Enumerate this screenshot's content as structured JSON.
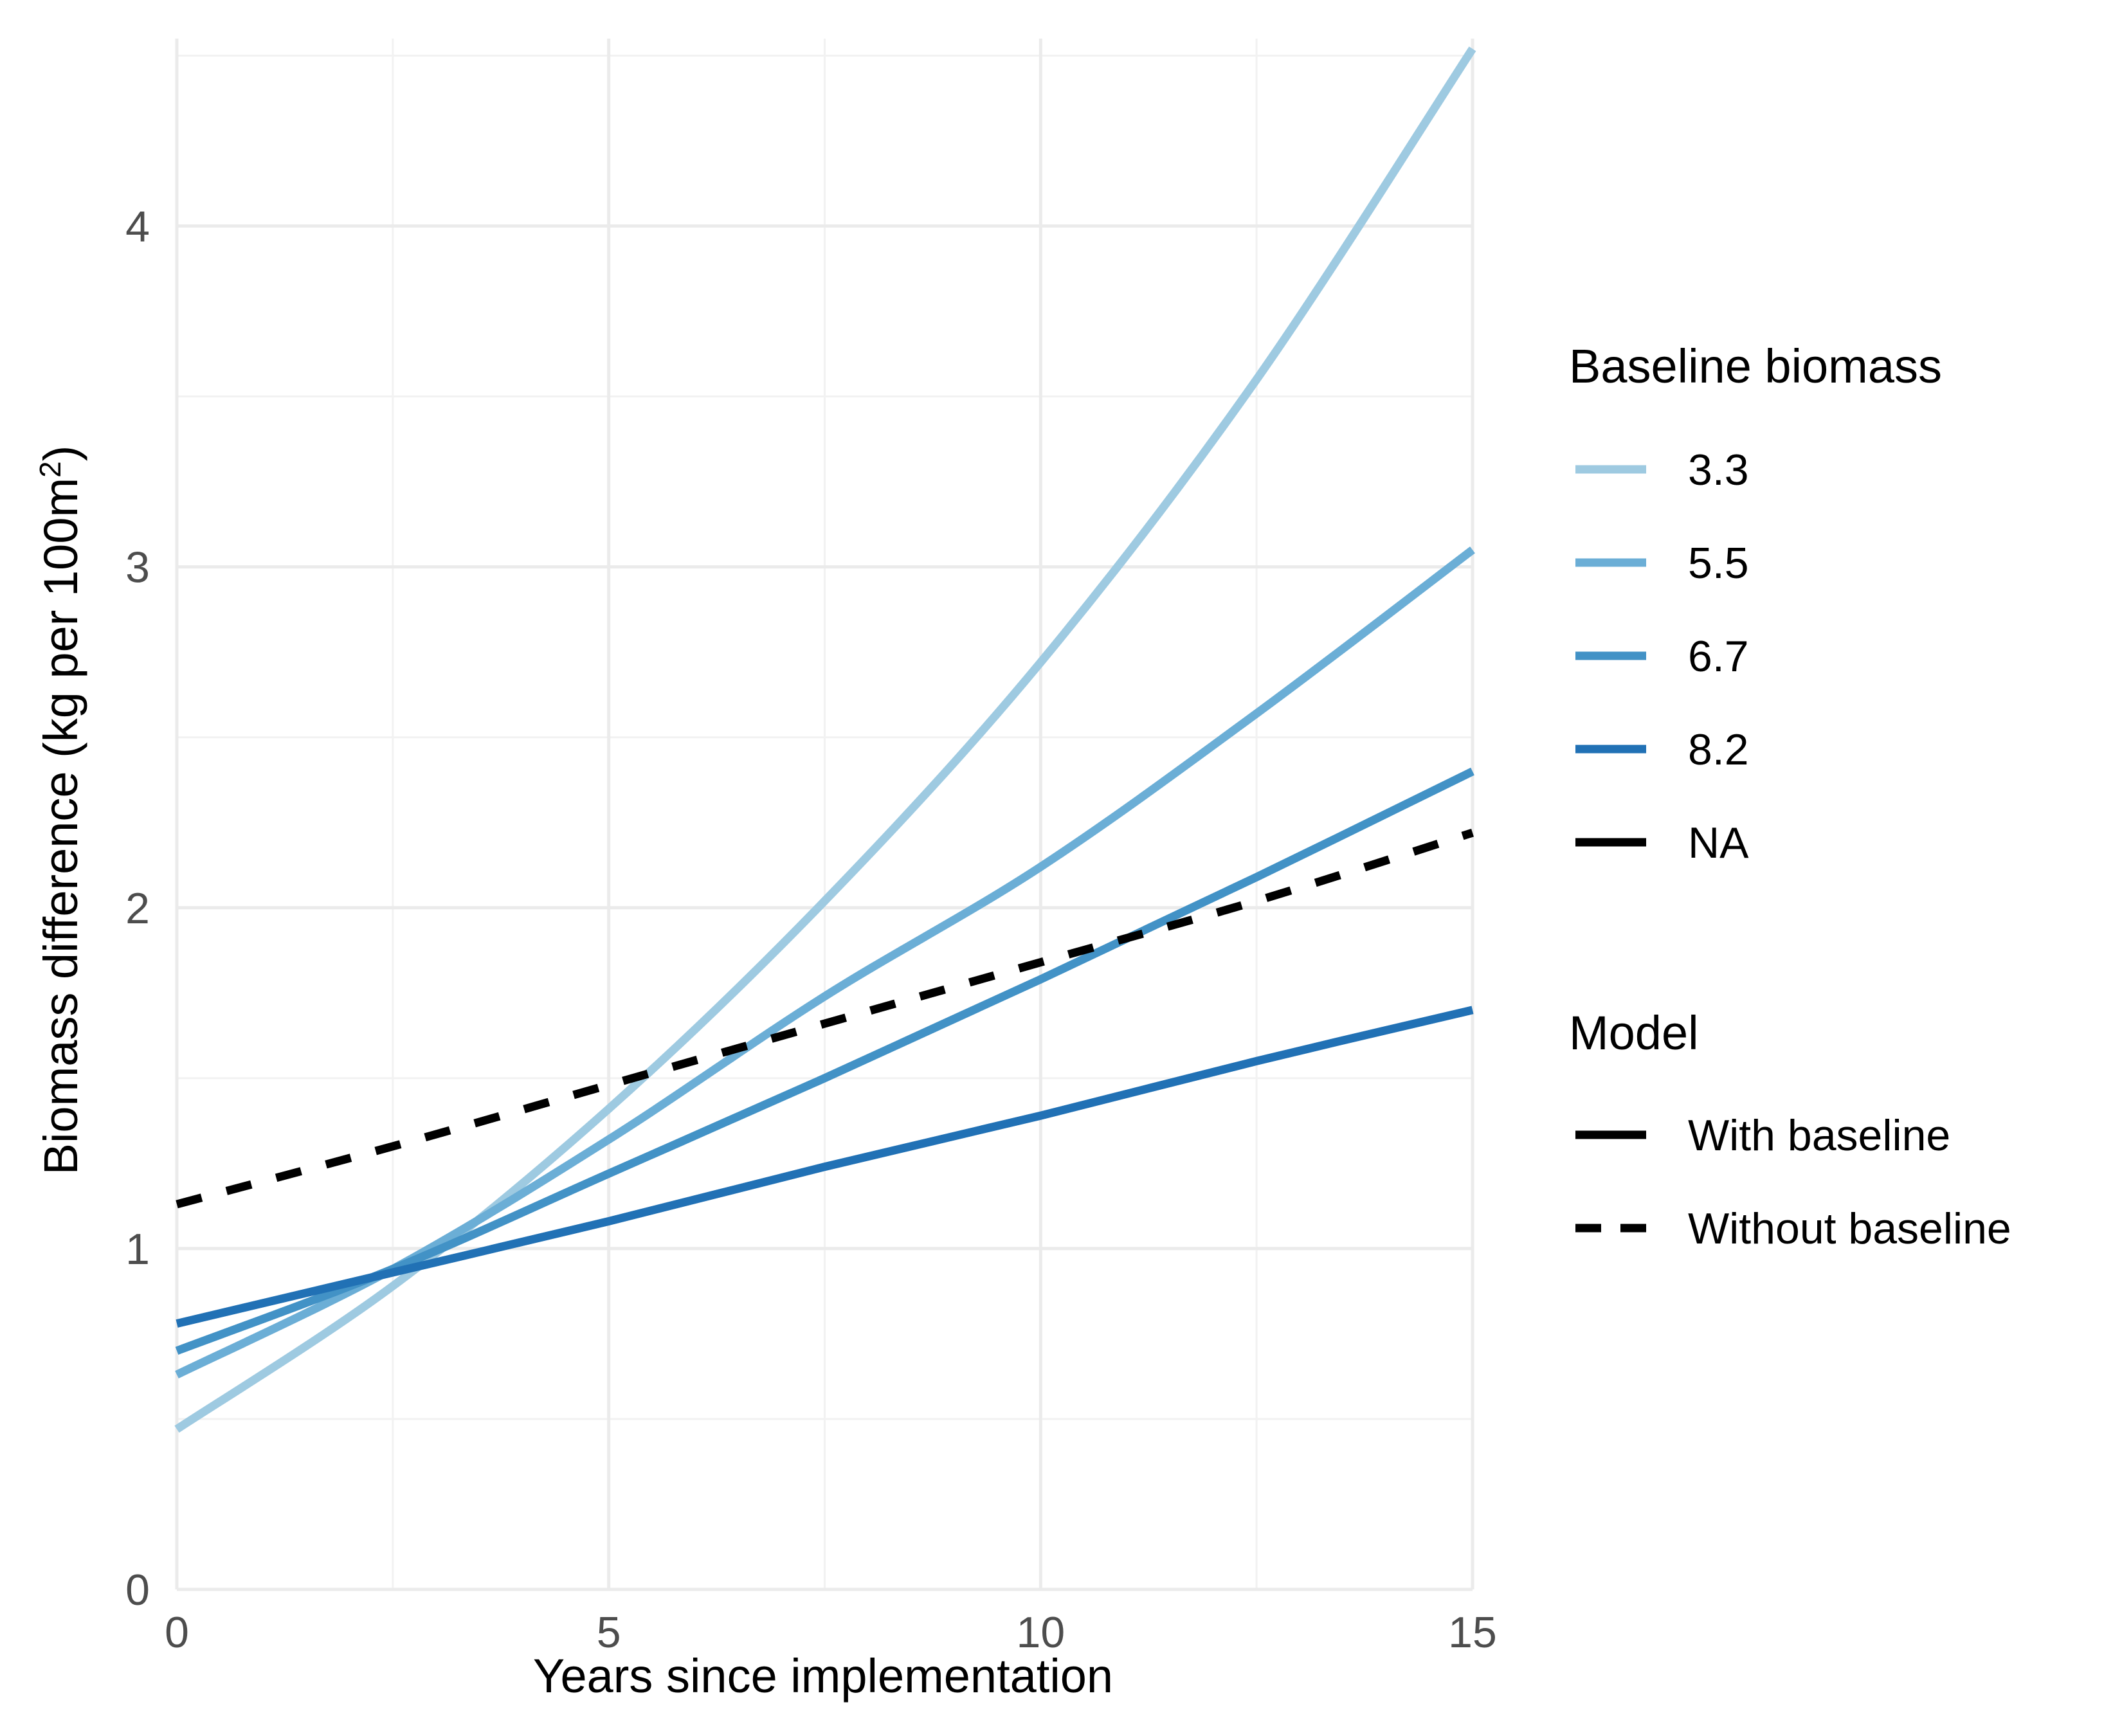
{
  "chart_data": {
    "type": "line",
    "xlabel": "Years since implementation",
    "ylabel": "Biomass difference (kg per 100m",
    "ylabel_sup": "2",
    "ylabel_close": ")",
    "xlim": [
      0,
      15
    ],
    "ylim": [
      0,
      4.55
    ],
    "x_ticks": [
      0,
      5,
      10,
      15
    ],
    "y_ticks": [
      0,
      1,
      2,
      3,
      4
    ],
    "grid": true,
    "legend_position": "right",
    "colors": {
      "3.3": "#9ecae1",
      "5.5": "#6baed6",
      "6.7": "#4292c6",
      "8.2": "#2171b5",
      "NA": "#000000"
    },
    "legends": [
      {
        "title": "Baseline biomass",
        "entries": [
          {
            "label": "3.3",
            "color": "#9ecae1",
            "dash": "solid"
          },
          {
            "label": "5.5",
            "color": "#6baed6",
            "dash": "solid"
          },
          {
            "label": "6.7",
            "color": "#4292c6",
            "dash": "solid"
          },
          {
            "label": "8.2",
            "color": "#2171b5",
            "dash": "solid"
          },
          {
            "label": "NA",
            "color": "#000000",
            "dash": "solid"
          }
        ]
      },
      {
        "title": "Model",
        "entries": [
          {
            "label": "With baseline",
            "color": "#000000",
            "dash": "solid"
          },
          {
            "label": "Without baseline",
            "color": "#000000",
            "dash": "dashed"
          }
        ]
      }
    ],
    "series": [
      {
        "baseline": "3.3",
        "model": "With baseline",
        "x": [
          0,
          2.5,
          5,
          7.5,
          10,
          12.5,
          15
        ],
        "y": [
          0.47,
          0.89,
          1.41,
          2.02,
          2.72,
          3.55,
          4.52
        ]
      },
      {
        "baseline": "5.5",
        "model": "With baseline",
        "x": [
          0,
          2.5,
          5,
          7.5,
          10,
          12.5,
          15
        ],
        "y": [
          0.63,
          0.94,
          1.32,
          1.74,
          2.12,
          2.57,
          3.05
        ]
      },
      {
        "baseline": "6.7",
        "model": "With baseline",
        "x": [
          0,
          2.5,
          5,
          7.5,
          10,
          12.5,
          15
        ],
        "y": [
          0.7,
          0.94,
          1.22,
          1.5,
          1.79,
          2.09,
          2.4
        ]
      },
      {
        "baseline": "8.2",
        "model": "With baseline",
        "x": [
          0,
          2.5,
          5,
          7.5,
          10,
          12.5,
          15
        ],
        "y": [
          0.78,
          0.93,
          1.08,
          1.24,
          1.39,
          1.55,
          1.7
        ]
      },
      {
        "baseline": "NA",
        "model": "Without baseline",
        "x": [
          0,
          2.5,
          5,
          7.5,
          10,
          12.5,
          15
        ],
        "y": [
          1.13,
          1.3,
          1.48,
          1.66,
          1.84,
          2.02,
          2.22
        ]
      }
    ]
  }
}
